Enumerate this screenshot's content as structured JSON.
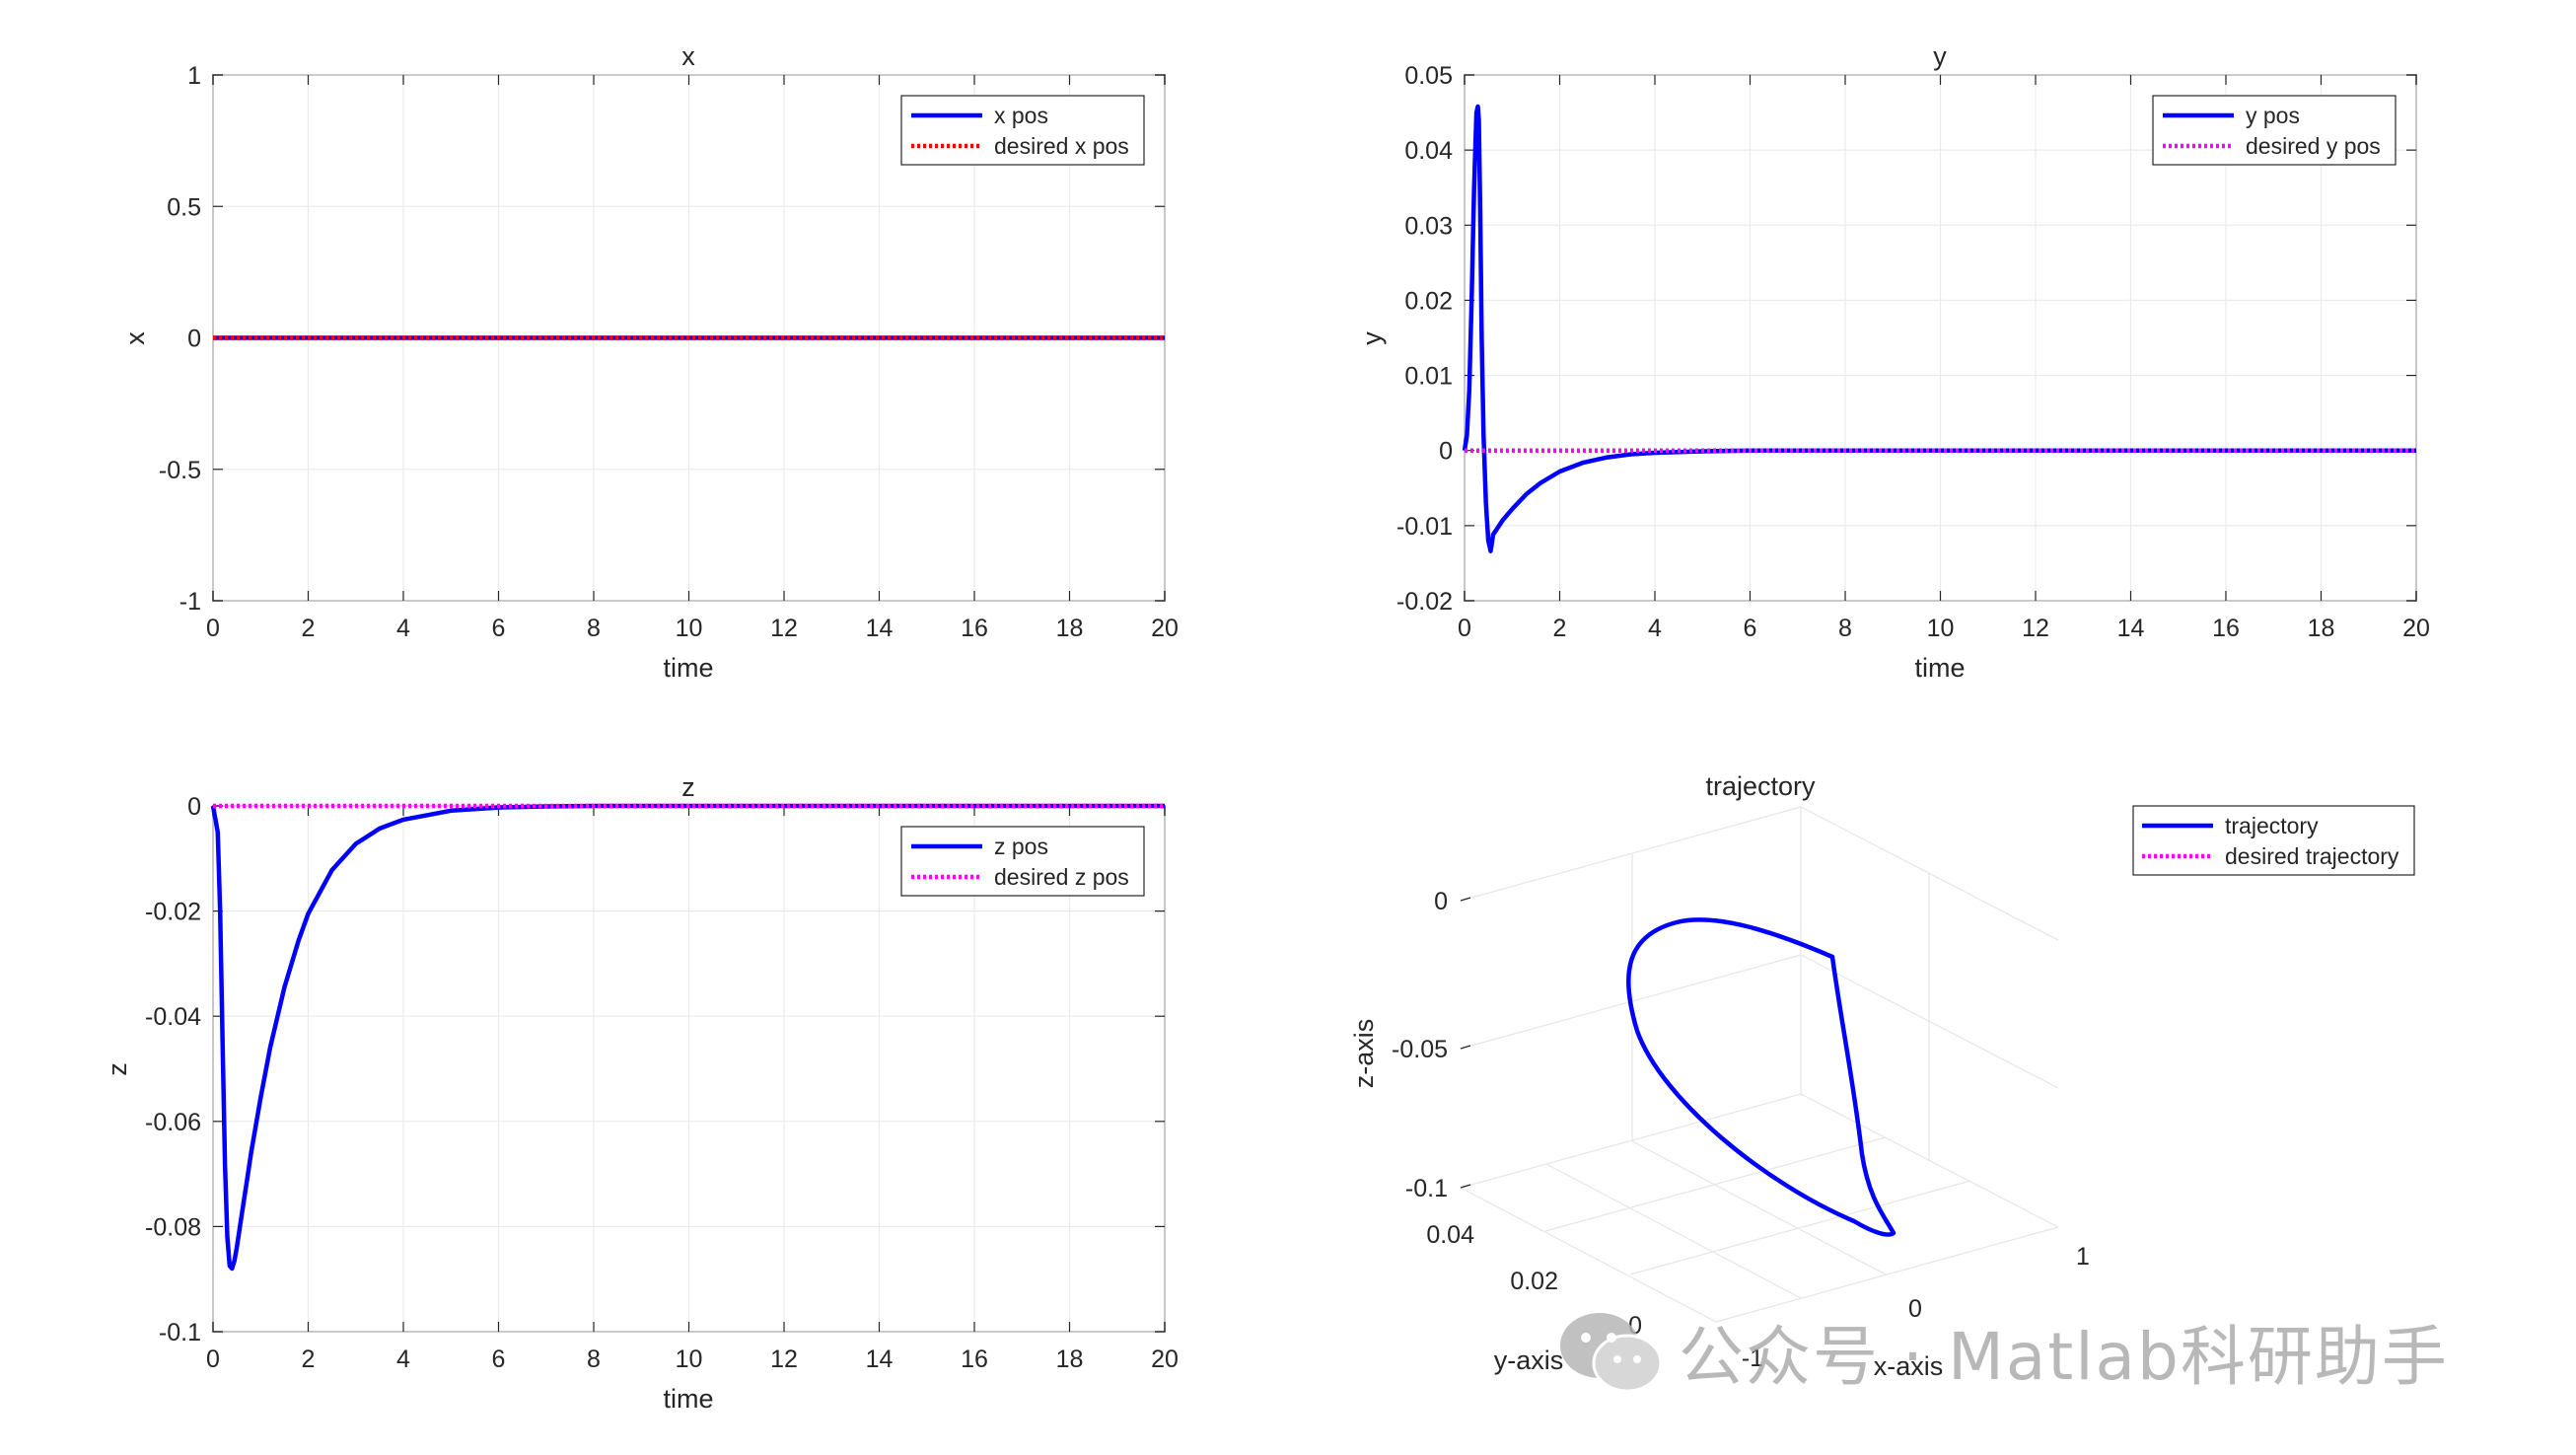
{
  "chart_data": [
    {
      "type": "line",
      "title": "x",
      "xlabel": "time",
      "ylabel": "x",
      "xlim": [
        0,
        20
      ],
      "ylim": [
        -1,
        1
      ],
      "xticks": [
        "0",
        "2",
        "4",
        "6",
        "8",
        "10",
        "12",
        "14",
        "16",
        "18",
        "20"
      ],
      "yticks": [
        "-1",
        "-0.5",
        "0",
        "0.5",
        "1"
      ],
      "grid": true,
      "legend_position": "top-right",
      "series": [
        {
          "name": "x pos",
          "style": "solid",
          "color": "#0000ff",
          "x": [
            0,
            20
          ],
          "y": [
            0,
            0
          ]
        },
        {
          "name": "desired x pos",
          "style": "dotted",
          "color": "#ff0000",
          "x": [
            0,
            20
          ],
          "y": [
            0,
            0
          ]
        }
      ]
    },
    {
      "type": "line",
      "title": "y",
      "xlabel": "time",
      "ylabel": "y",
      "xlim": [
        0,
        20
      ],
      "ylim": [
        -0.02,
        0.05
      ],
      "xticks": [
        "0",
        "2",
        "4",
        "6",
        "8",
        "10",
        "12",
        "14",
        "16",
        "18",
        "20"
      ],
      "yticks": [
        "-0.02",
        "-0.01",
        "0",
        "0.01",
        "0.02",
        "0.03",
        "0.04",
        "0.05"
      ],
      "grid": true,
      "legend_position": "top-right",
      "series": [
        {
          "name": "y pos",
          "style": "solid",
          "color": "#0000ff",
          "x": [
            0,
            0.05,
            0.1,
            0.15,
            0.2,
            0.25,
            0.28,
            0.3,
            0.33,
            0.36,
            0.4,
            0.45,
            0.5,
            0.55,
            0.6,
            0.8,
            1.0,
            1.3,
            1.6,
            2.0,
            2.5,
            3.0,
            3.5,
            4.0,
            5.0,
            6.0,
            8.0,
            10,
            20
          ],
          "y": [
            0,
            0.002,
            0.008,
            0.02,
            0.035,
            0.045,
            0.0458,
            0.044,
            0.032,
            0.015,
            0.002,
            -0.007,
            -0.012,
            -0.0134,
            -0.0112,
            -0.0093,
            -0.0078,
            -0.0058,
            -0.0043,
            -0.0028,
            -0.0016,
            -0.0009,
            -0.0005,
            -0.0003,
            -0.0001,
            0,
            0,
            0,
            0
          ]
        },
        {
          "name": "desired y pos",
          "style": "dotted",
          "color": "#ff00ff",
          "x": [
            0,
            20
          ],
          "y": [
            0,
            0
          ]
        }
      ]
    },
    {
      "type": "line",
      "title": "z",
      "xlabel": "time",
      "ylabel": "z",
      "xlim": [
        0,
        20
      ],
      "ylim": [
        -0.1,
        0
      ],
      "xticks": [
        "0",
        "2",
        "4",
        "6",
        "8",
        "10",
        "12",
        "14",
        "16",
        "18",
        "20"
      ],
      "yticks": [
        "-0.1",
        "-0.08",
        "-0.06",
        "-0.04",
        "-0.02",
        "0"
      ],
      "grid": true,
      "legend_position": "top-right",
      "series": [
        {
          "name": "z pos",
          "style": "solid",
          "color": "#0000ff",
          "x": [
            0,
            0.1,
            0.15,
            0.2,
            0.25,
            0.3,
            0.35,
            0.4,
            0.45,
            0.5,
            0.6,
            0.7,
            0.8,
            1.0,
            1.2,
            1.5,
            1.8,
            2.0,
            2.5,
            3.0,
            3.5,
            4.0,
            5.0,
            6.0,
            7.0,
            8.0,
            10,
            20
          ],
          "y": [
            0,
            -0.005,
            -0.02,
            -0.045,
            -0.068,
            -0.082,
            -0.0875,
            -0.088,
            -0.0865,
            -0.084,
            -0.078,
            -0.072,
            -0.066,
            -0.0555,
            -0.046,
            -0.0345,
            -0.0255,
            -0.0205,
            -0.0122,
            -0.0072,
            -0.0043,
            -0.0026,
            -0.0009,
            -0.0003,
            -0.0001,
            0,
            0,
            0
          ]
        },
        {
          "name": "desired z pos",
          "style": "dotted",
          "color": "#ff00ff",
          "x": [
            0,
            20
          ],
          "y": [
            0,
            0
          ]
        }
      ]
    },
    {
      "type": "line3d",
      "title": "trajectory",
      "xlabel": "x-axis",
      "ylabel": "y-axis",
      "zlabel": "z-axis",
      "zticks": [
        "0",
        "-0.05",
        "-0.1"
      ],
      "yticks": [
        "0.04",
        "0.02",
        "0"
      ],
      "xticks": [
        "-1",
        "0",
        "1"
      ],
      "grid": true,
      "legend_position": "top-right",
      "series": [
        {
          "name": "trajectory",
          "style": "solid",
          "color": "#0000ff"
        },
        {
          "name": "desired trajectory",
          "style": "dotted",
          "color": "#ff00ff"
        }
      ]
    }
  ],
  "watermark": {
    "icon": "wechat-icon",
    "text": "公众号 · Matlab科研助手"
  }
}
